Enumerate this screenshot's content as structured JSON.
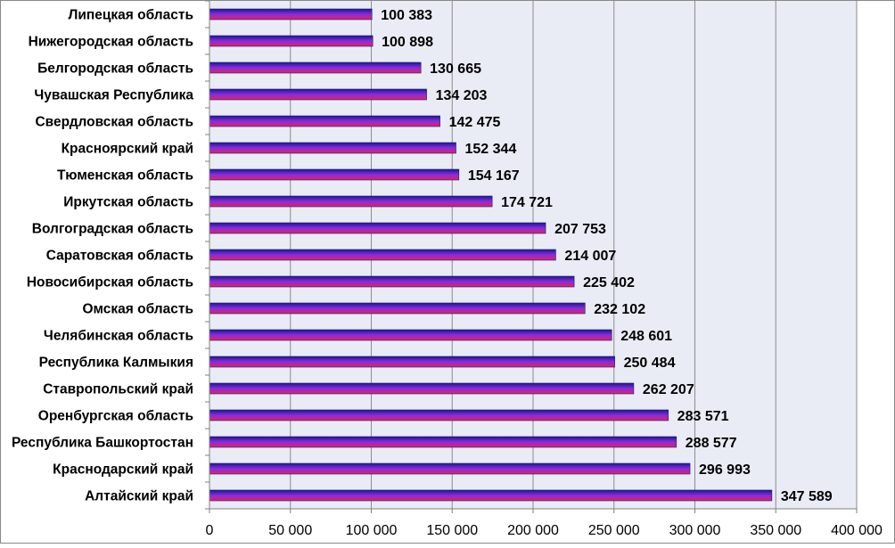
{
  "chart_data": {
    "type": "bar",
    "orientation": "horizontal",
    "categories": [
      "Липецкая область",
      "Нижегородская область",
      "Белгородская область",
      "Чувашская Республика",
      "Свердловская область",
      "Красноярский край",
      "Тюменская область",
      "Иркутская  область",
      "Волгоградская область",
      "Саратовская  область",
      "Новосибирская область",
      "Омская область",
      "Челябинская область",
      "Республика Калмыкия",
      "Ставропольский край",
      "Оренбургская область",
      "Республика Башкортостан",
      "Краснодарский край",
      "Алтайский край"
    ],
    "values": [
      100383,
      100898,
      130665,
      134203,
      142475,
      152344,
      154167,
      174721,
      207753,
      214007,
      225402,
      232102,
      248601,
      250484,
      262207,
      283571,
      288577,
      296993,
      347589
    ],
    "value_labels": [
      "100 383",
      "100 898",
      "130 665",
      "134 203",
      "142 475",
      "152 344",
      "154 167",
      "174 721",
      "207 753",
      "214 007",
      "225 402",
      "232 102",
      "248 601",
      "250 484",
      "262 207",
      "283 571",
      "288 577",
      "296 993",
      "347 589"
    ],
    "xlim": [
      0,
      400000
    ],
    "x_ticks": [
      0,
      50000,
      100000,
      150000,
      200000,
      250000,
      300000,
      350000,
      400000
    ],
    "x_tick_labels": [
      "0",
      "50 000",
      "100 000",
      "150 000",
      "200 000",
      "250 000",
      "300 000",
      "350 000",
      "400 000"
    ],
    "grid": true,
    "legend": "none",
    "title": "",
    "xlabel": "",
    "ylabel": "",
    "colors": {
      "bar_top": "#1a1a8c",
      "bar_middle": "#8a2be2",
      "bar_bottom": "#e0245a",
      "plot_background": "#e9ecf5",
      "gridline": "#8c8c8c",
      "axis": "#808080"
    }
  }
}
